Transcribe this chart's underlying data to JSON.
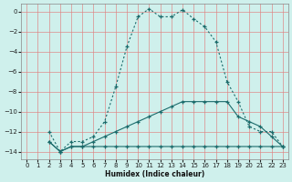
{
  "xlabel": "Humidex (Indice chaleur)",
  "background_color": "#cff0ec",
  "grid_color": "#e08080",
  "line_color": "#1a6b6b",
  "xlim": [
    -0.5,
    23.5
  ],
  "ylim": [
    -14.8,
    0.8
  ],
  "x_ticks": [
    0,
    1,
    2,
    3,
    4,
    5,
    6,
    7,
    8,
    9,
    10,
    11,
    12,
    13,
    14,
    15,
    16,
    17,
    18,
    19,
    20,
    21,
    22,
    23
  ],
  "y_ticks": [
    0,
    -2,
    -4,
    -6,
    -8,
    -10,
    -12,
    -14
  ],
  "curve_dotted": {
    "x": [
      2,
      3,
      4,
      5,
      6,
      7,
      8,
      9,
      10,
      11,
      12,
      13,
      14,
      15,
      16,
      17,
      18,
      19,
      20,
      21,
      22,
      23
    ],
    "y": [
      -12,
      -14,
      -13,
      -13,
      -12.5,
      -11,
      -7.5,
      -3.5,
      -0.5,
      0.3,
      -0.5,
      -0.5,
      0.2,
      -0.7,
      -1.5,
      -3,
      -7,
      -9,
      -11.5,
      -12,
      -12,
      -13.5
    ]
  },
  "curve_solid_flat": {
    "x": [
      2,
      3,
      4,
      5,
      6,
      7,
      8,
      9,
      10,
      11,
      12,
      13,
      14,
      15,
      16,
      17,
      18,
      19,
      20,
      21,
      22,
      23
    ],
    "y": [
      -13,
      -14,
      -13.5,
      -13.5,
      -13.5,
      -13.5,
      -13.5,
      -13.5,
      -13.5,
      -13.5,
      -13.5,
      -13.5,
      -13.5,
      -13.5,
      -13.5,
      -13.5,
      -13.5,
      -13.5,
      -13.5,
      -13.5,
      -13.5,
      -13.5
    ]
  },
  "curve_solid_diag": {
    "x": [
      2,
      3,
      4,
      5,
      6,
      7,
      8,
      9,
      10,
      11,
      12,
      13,
      14,
      15,
      16,
      17,
      18,
      19,
      20,
      21,
      22,
      23
    ],
    "y": [
      -13,
      -14,
      -13.5,
      -13.5,
      -13,
      -12.5,
      -12,
      -11.5,
      -11,
      -10.5,
      -10,
      -9.5,
      -9,
      -9,
      -9,
      -9,
      -9,
      -10.5,
      -11,
      -11.5,
      -12.5,
      -13.5
    ]
  }
}
